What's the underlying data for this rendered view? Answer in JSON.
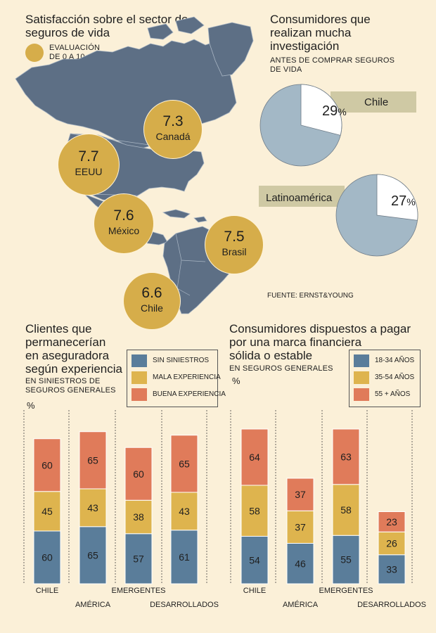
{
  "map_panel": {
    "title_line1": "Satisfacción sobre el sector de",
    "title_line2": "seguros de vida",
    "legend_line1": "EVALUACIÓN",
    "legend_line2": "DE 0 A 10",
    "bubble_color": "#d6ad4a",
    "ratings": [
      {
        "value": "7.3",
        "country": "Canadá"
      },
      {
        "value": "7.7",
        "country": "EEUU"
      },
      {
        "value": "7.6",
        "country": "México"
      },
      {
        "value": "7.5",
        "country": "Brasil"
      },
      {
        "value": "6.6",
        "country": "Chile"
      }
    ]
  },
  "research_panel": {
    "title_line1": "Consumidores que",
    "title_line2": "realizan mucha",
    "title_line3": "investigación",
    "sub_line1": "ANTES DE COMPRAR SEGUROS",
    "sub_line2": "DE VIDA",
    "source": "FUENTE: ERNST&YOUNG",
    "pies": [
      {
        "label": "Chile",
        "value": 29,
        "display": "29",
        "unit": "%"
      },
      {
        "label": "Latinoamérica",
        "value": 27,
        "display": "27",
        "unit": "%"
      }
    ]
  },
  "chart_data": [
    {
      "type": "bar",
      "stacked": true,
      "title": "Clientes que permanecerían en aseguradora según experiencia",
      "title_lines": [
        "Clientes que",
        "permanecerían",
        "en aseguradora",
        "según experiencia"
      ],
      "subtitle_lines": [
        "EN SINIESTROS DE",
        "SEGUROS GENERALES"
      ],
      "ylabel": "%",
      "categories": [
        "CHILE",
        "AMÉRICA",
        "EMERGENTES",
        "DESARROLLADOS"
      ],
      "series": [
        {
          "name": "SIN SINIESTROS",
          "color": "#5a7d9a",
          "values": [
            60,
            65,
            57,
            61
          ]
        },
        {
          "name": "MALA EXPERIENCIA",
          "color": "#deb44e",
          "values": [
            45,
            43,
            38,
            43
          ]
        },
        {
          "name": "BUENA EXPERIENCIA",
          "color": "#e07b5a",
          "values": [
            60,
            65,
            60,
            65
          ]
        }
      ]
    },
    {
      "type": "bar",
      "stacked": true,
      "title": "Consumidores dispuestos a pagar por una marca financiera sólida o estable",
      "title_lines": [
        "Consumidores dispuestos a pagar",
        "por una marca financiera",
        "sólida o estable"
      ],
      "subtitle_lines": [
        "EN SEGUROS GENERALES"
      ],
      "ylabel": "%",
      "categories": [
        "CHILE",
        "AMÉRICA",
        "EMERGENTES",
        "DESARROLLADOS"
      ],
      "series": [
        {
          "name": "18-34 AÑOS",
          "color": "#5a7d9a",
          "values": [
            54,
            46,
            55,
            33
          ]
        },
        {
          "name": "35-54 AÑOS",
          "color": "#deb44e",
          "values": [
            58,
            37,
            58,
            26
          ]
        },
        {
          "name": "55 + AÑOS",
          "color": "#e07b5a",
          "values": [
            64,
            37,
            63,
            23
          ]
        }
      ]
    }
  ]
}
